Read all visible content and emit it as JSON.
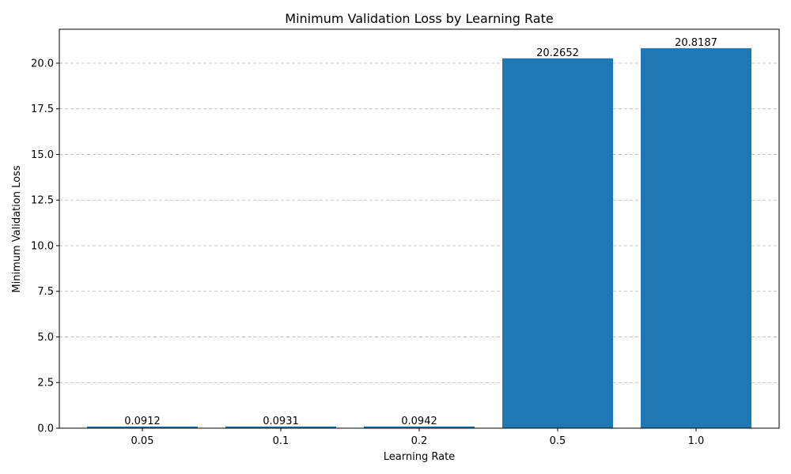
{
  "chart_data": {
    "type": "bar",
    "title": "Minimum Validation Loss by Learning Rate",
    "xlabel": "Learning Rate",
    "ylabel": "Minimum Validation Loss",
    "categories": [
      "0.05",
      "0.1",
      "0.2",
      "0.5",
      "1.0"
    ],
    "values": [
      0.0912,
      0.0931,
      0.0942,
      20.2652,
      20.8187
    ],
    "value_labels": [
      "0.0912",
      "0.0931",
      "0.0942",
      "20.2652",
      "20.8187"
    ],
    "yticks": [
      0.0,
      2.5,
      5.0,
      7.5,
      10.0,
      12.5,
      15.0,
      17.5,
      20.0
    ],
    "ytick_labels": [
      "0.0",
      "2.5",
      "5.0",
      "7.5",
      "10.0",
      "12.5",
      "15.0",
      "17.5",
      "20.0"
    ],
    "ylim": [
      0,
      21.86
    ],
    "grid": "y-dashed",
    "bar_color": "#1f77b4"
  }
}
